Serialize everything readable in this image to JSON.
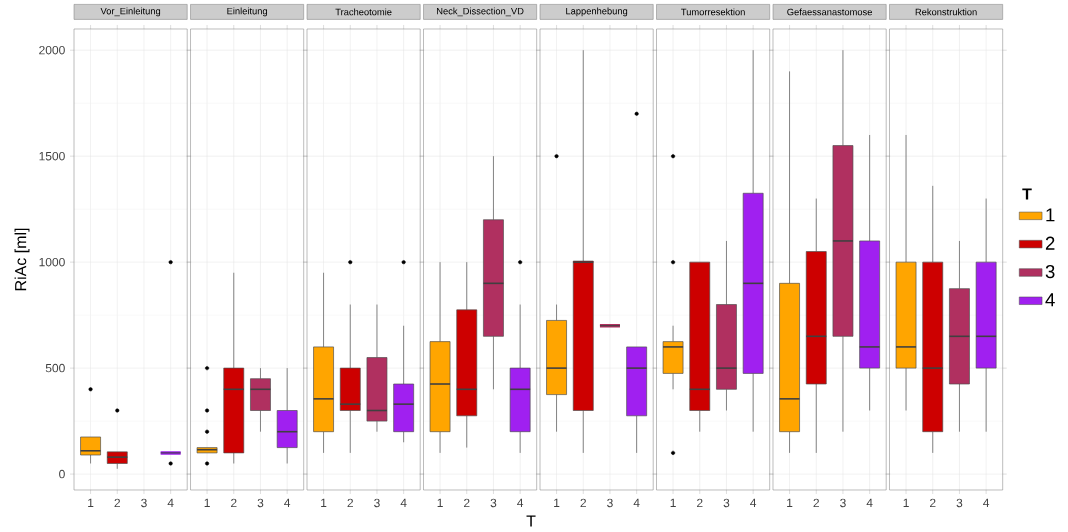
{
  "chart_data": [
    {
      "type": "box",
      "title": "Vor_Einleitung",
      "ylabel": "RiAc [ml]",
      "categories": [
        "1",
        "2",
        "3",
        "4"
      ],
      "ylim": [
        -75,
        2100
      ],
      "yticks": [
        0,
        500,
        1000,
        1500,
        2000
      ],
      "grid": true,
      "series": [
        {
          "color": "#ffa500",
          "boxes": [
            {
              "low": 50,
              "q1": 90,
              "median": 110,
              "q3": 175,
              "high": 175,
              "outliers": [
                400
              ]
            },
            null,
            null,
            null
          ]
        },
        {
          "color": "#cd0000",
          "boxes": [
            null,
            {
              "low": 25,
              "q1": 50,
              "median": 80,
              "q3": 105,
              "high": 105,
              "outliers": [
                300
              ]
            },
            null,
            null
          ]
        },
        {
          "color": "#b03060",
          "boxes": [
            null,
            null,
            null,
            null
          ]
        },
        {
          "color": "#a020f0",
          "boxes": [
            null,
            null,
            null,
            {
              "low": 100,
              "q1": 100,
              "median": 100,
              "q3": 100,
              "high": 100,
              "outliers": [
                1000,
                50
              ]
            }
          ]
        }
      ]
    },
    {
      "type": "box",
      "title": "Einleitung",
      "categories": [
        "1",
        "2",
        "3",
        "4"
      ],
      "ylim": [
        -75,
        2100
      ],
      "yticks": [
        0,
        500,
        1000,
        1500,
        2000
      ],
      "grid": true,
      "tick_labels": "x",
      "series": [
        {
          "color": "#ffa500",
          "boxes": [
            {
              "low": 100,
              "q1": 100,
              "median": 115,
              "q3": 125,
              "high": 125,
              "outliers": [
                500,
                300,
                200,
                50
              ]
            },
            null,
            null,
            null
          ]
        },
        {
          "color": "#cd0000",
          "boxes": [
            null,
            {
              "low": 50,
              "q1": 100,
              "median": 400,
              "q3": 500,
              "high": 950
            },
            null,
            null
          ]
        },
        {
          "color": "#b03060",
          "boxes": [
            null,
            null,
            {
              "low": 200,
              "q1": 300,
              "median": 400,
              "q3": 450,
              "high": 500
            },
            null
          ]
        },
        {
          "color": "#a020f0",
          "boxes": [
            null,
            null,
            null,
            {
              "low": 50,
              "q1": 125,
              "median": 200,
              "q3": 300,
              "high": 500
            }
          ]
        }
      ]
    },
    {
      "type": "box",
      "title": "Tracheotomie",
      "categories": [
        "1",
        "2",
        "3",
        "4"
      ],
      "ylim": [
        -75,
        2100
      ],
      "yticks": [
        0,
        500,
        1000,
        1500,
        2000
      ],
      "grid": true,
      "tick_labels": "x",
      "series": [
        {
          "color": "#ffa500",
          "boxes": [
            {
              "low": 100,
              "q1": 200,
              "median": 355,
              "q3": 600,
              "high": 950
            },
            null,
            null,
            null
          ]
        },
        {
          "color": "#cd0000",
          "boxes": [
            null,
            {
              "low": 100,
              "q1": 300,
              "median": 330,
              "q3": 500,
              "high": 800,
              "outliers": [
                1000
              ]
            },
            null,
            null
          ]
        },
        {
          "color": "#b03060",
          "boxes": [
            null,
            null,
            {
              "low": 200,
              "q1": 250,
              "median": 300,
              "q3": 550,
              "high": 800
            },
            null
          ]
        },
        {
          "color": "#a020f0",
          "boxes": [
            null,
            null,
            null,
            {
              "low": 150,
              "q1": 200,
              "median": 330,
              "q3": 425,
              "high": 700,
              "outliers": [
                1000
              ]
            }
          ]
        }
      ]
    },
    {
      "type": "box",
      "title": "Neck_Dissection_VD",
      "xlabel": "T",
      "categories": [
        "1",
        "2",
        "3",
        "4"
      ],
      "ylim": [
        -75,
        2100
      ],
      "yticks": [
        0,
        500,
        1000,
        1500,
        2000
      ],
      "grid": true,
      "tick_labels": "x",
      "series": [
        {
          "color": "#ffa500",
          "boxes": [
            {
              "low": 100,
              "q1": 200,
              "median": 425,
              "q3": 625,
              "high": 1000
            },
            null,
            null,
            null
          ]
        },
        {
          "color": "#cd0000",
          "boxes": [
            null,
            {
              "low": 125,
              "q1": 275,
              "median": 400,
              "q3": 775,
              "high": 1000
            },
            null,
            null
          ]
        },
        {
          "color": "#b03060",
          "boxes": [
            null,
            null,
            {
              "low": 400,
              "q1": 650,
              "median": 900,
              "q3": 1200,
              "high": 1500
            },
            null
          ]
        },
        {
          "color": "#a020f0",
          "boxes": [
            null,
            null,
            null,
            {
              "low": 100,
              "q1": 200,
              "median": 400,
              "q3": 500,
              "high": 800,
              "outliers": [
                1000
              ]
            }
          ]
        }
      ]
    },
    {
      "type": "box",
      "title": "Lappenhebung",
      "categories": [
        "1",
        "2",
        "3",
        "4"
      ],
      "ylim": [
        -75,
        2100
      ],
      "yticks": [
        0,
        500,
        1000,
        1500,
        2000
      ],
      "grid": true,
      "tick_labels": "x",
      "series": [
        {
          "color": "#ffa500",
          "boxes": [
            {
              "low": 200,
              "q1": 375,
              "median": 500,
              "q3": 725,
              "high": 800,
              "outliers": [
                1500
              ]
            },
            null,
            null,
            null
          ]
        },
        {
          "color": "#cd0000",
          "boxes": [
            null,
            {
              "low": 100,
              "q1": 300,
              "median": 1000,
              "q3": 1005,
              "high": 2000
            },
            null,
            null
          ]
        },
        {
          "color": "#b03060",
          "boxes": [
            null,
            null,
            {
              "low": 700,
              "q1": 700,
              "median": 700,
              "q3": 700,
              "high": 700
            },
            null
          ]
        },
        {
          "color": "#a020f0",
          "boxes": [
            null,
            null,
            null,
            {
              "low": 100,
              "q1": 275,
              "median": 500,
              "q3": 600,
              "high": 600,
              "outliers": [
                1700
              ]
            }
          ]
        }
      ]
    },
    {
      "type": "box",
      "title": "Tumorresektion",
      "categories": [
        "1",
        "2",
        "3",
        "4"
      ],
      "ylim": [
        -75,
        2100
      ],
      "yticks": [
        0,
        500,
        1000,
        1500,
        2000
      ],
      "grid": true,
      "tick_labels": "x",
      "series": [
        {
          "color": "#ffa500",
          "boxes": [
            {
              "low": 400,
              "q1": 475,
              "median": 600,
              "q3": 625,
              "high": 700,
              "outliers": [
                1500,
                1000,
                100
              ]
            },
            null,
            null,
            null
          ]
        },
        {
          "color": "#cd0000",
          "boxes": [
            null,
            {
              "low": 200,
              "q1": 300,
              "median": 400,
              "q3": 1000,
              "high": 1000
            },
            null,
            null
          ]
        },
        {
          "color": "#b03060",
          "boxes": [
            null,
            null,
            {
              "low": 300,
              "q1": 400,
              "median": 500,
              "q3": 800,
              "high": 1100
            },
            null
          ]
        },
        {
          "color": "#a020f0",
          "boxes": [
            null,
            null,
            null,
            {
              "low": 200,
              "q1": 475,
              "median": 900,
              "q3": 1325,
              "high": 2000
            }
          ]
        }
      ]
    },
    {
      "type": "box",
      "title": "Gefaessanastomose",
      "categories": [
        "1",
        "2",
        "3",
        "4"
      ],
      "ylim": [
        -75,
        2100
      ],
      "yticks": [
        0,
        500,
        1000,
        1500,
        2000
      ],
      "grid": true,
      "tick_labels": "x",
      "series": [
        {
          "color": "#ffa500",
          "boxes": [
            {
              "low": 100,
              "q1": 200,
              "median": 355,
              "q3": 900,
              "high": 1900
            },
            null,
            null,
            null
          ]
        },
        {
          "color": "#cd0000",
          "boxes": [
            null,
            {
              "low": 100,
              "q1": 425,
              "median": 650,
              "q3": 1050,
              "high": 1300
            },
            null,
            null
          ]
        },
        {
          "color": "#b03060",
          "boxes": [
            null,
            null,
            {
              "low": 200,
              "q1": 650,
              "median": 1100,
              "q3": 1550,
              "high": 2000
            },
            null
          ]
        },
        {
          "color": "#a020f0",
          "boxes": [
            null,
            null,
            null,
            {
              "low": 300,
              "q1": 500,
              "median": 600,
              "q3": 1100,
              "high": 1600
            }
          ]
        }
      ]
    },
    {
      "type": "box",
      "title": "Rekonstruktion",
      "legend_title": "T",
      "legend": "right",
      "categories": [
        "1",
        "2",
        "3",
        "4"
      ],
      "ylim": [
        -75,
        2100
      ],
      "yticks": [
        0,
        500,
        1000,
        1500,
        2000
      ],
      "grid": true,
      "tick_labels": "x",
      "series": [
        {
          "name": "1",
          "color": "#ffa500",
          "boxes": [
            {
              "low": 300,
              "q1": 500,
              "median": 600,
              "q3": 1000,
              "high": 1600
            },
            null,
            null,
            null
          ]
        },
        {
          "name": "2",
          "color": "#cd0000",
          "boxes": [
            null,
            {
              "low": 100,
              "q1": 200,
              "median": 500,
              "q3": 1000,
              "high": 1360
            },
            null,
            null
          ]
        },
        {
          "name": "3",
          "color": "#b03060",
          "boxes": [
            null,
            null,
            {
              "low": 200,
              "q1": 425,
              "median": 650,
              "q3": 875,
              "high": 1100
            },
            null
          ]
        },
        {
          "name": "4",
          "color": "#a020f0",
          "boxes": [
            null,
            null,
            null,
            {
              "low": 200,
              "q1": 500,
              "median": 650,
              "q3": 1000,
              "high": 1300
            }
          ]
        }
      ]
    }
  ]
}
